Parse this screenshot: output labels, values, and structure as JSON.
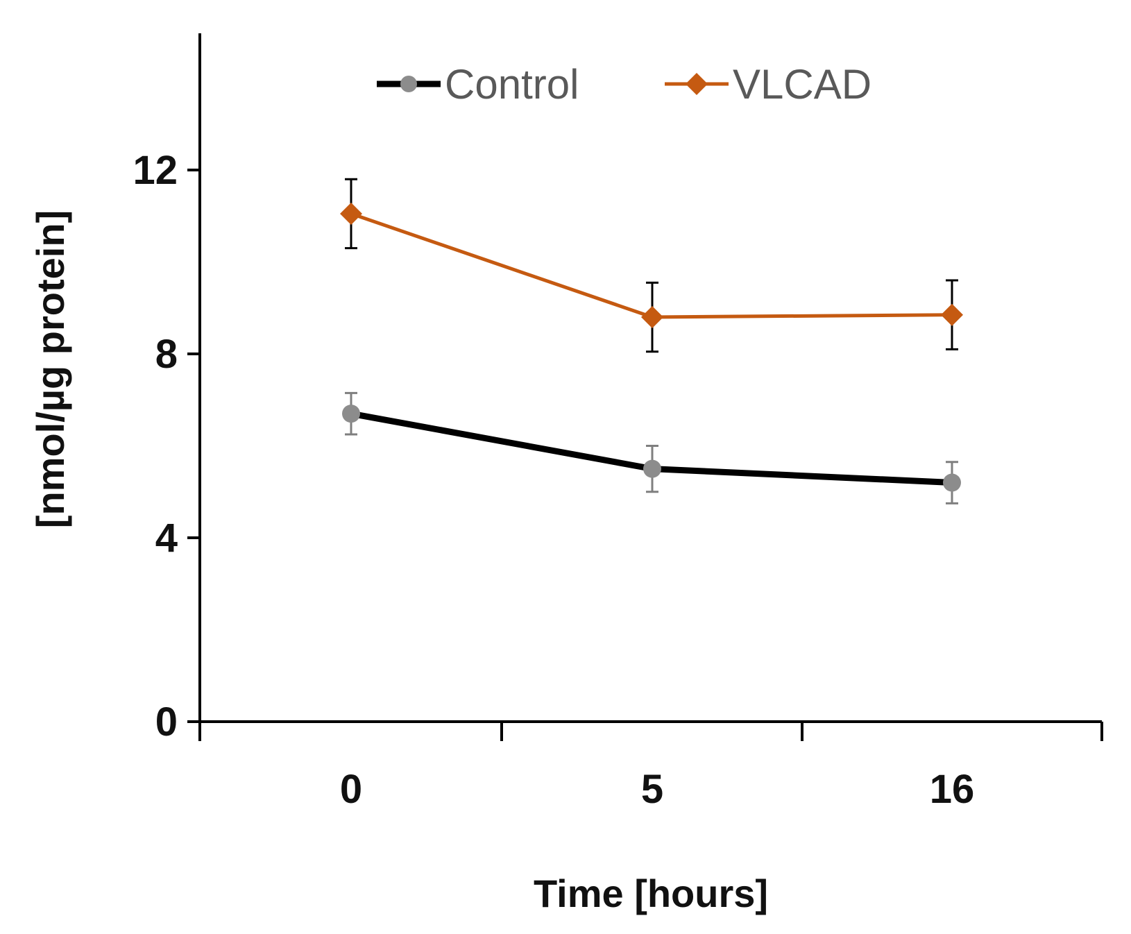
{
  "chart_data": {
    "type": "line",
    "title": "",
    "xlabel": "Time [hours]",
    "ylabel": "[nmol/µg protein]",
    "categories": [
      "0",
      "5",
      "16"
    ],
    "ylim": [
      0,
      15
    ],
    "yticks": [
      0,
      4,
      8,
      12
    ],
    "grid": false,
    "legend_position": "top",
    "series": [
      {
        "name": "Control",
        "values": [
          6.7,
          5.5,
          5.2
        ],
        "errors": [
          0.45,
          0.5,
          0.45
        ],
        "line_color": "#000000",
        "marker_color": "#8c8c8c",
        "error_color": "#7f7f7f",
        "marker": "circle"
      },
      {
        "name": "VLCAD",
        "values": [
          11.05,
          8.8,
          8.85
        ],
        "errors": [
          0.75,
          0.75,
          0.75
        ],
        "line_color": "#c55a11",
        "marker_color": "#c55a11",
        "error_color": "#000000",
        "marker": "diamond"
      }
    ]
  }
}
